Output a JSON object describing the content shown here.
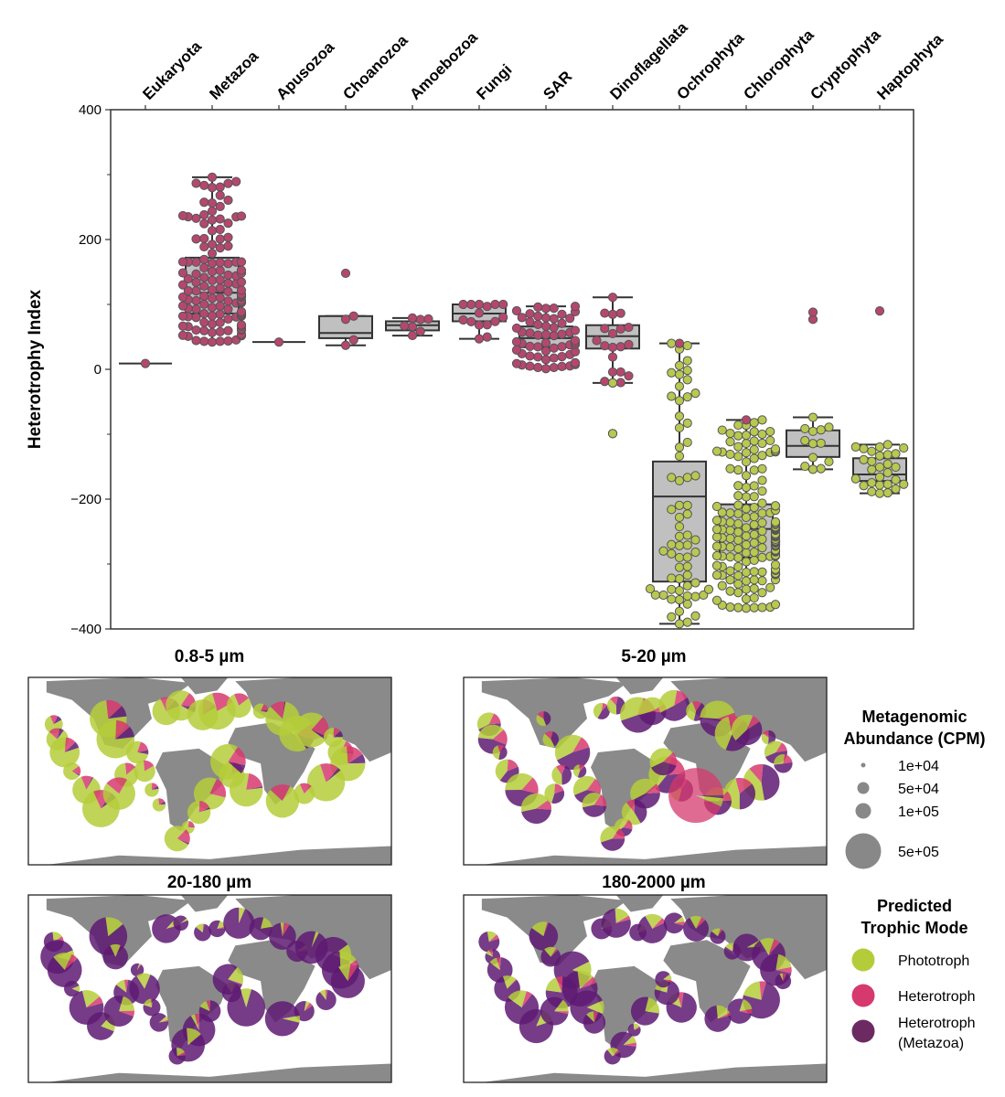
{
  "chart_data": [
    {
      "type": "box",
      "subtype": "box-with-swarm",
      "title": "",
      "xlabel": "",
      "ylabel": "Heterotrophy Index",
      "ylim": [
        -400,
        400
      ],
      "yticks": [
        400,
        200,
        0,
        -200,
        -400
      ],
      "ytick_labels": [
        "400",
        "200",
        "0",
        "−200",
        "−400"
      ],
      "yminor_ticks": [
        300,
        100,
        -100,
        -300
      ],
      "x_axis_position": "top",
      "grid": false,
      "categories": [
        "Eukaryota",
        "Metazoa",
        "Apusozoa",
        "Choanozoa",
        "Amoebozoa",
        "Fungi",
        "SAR",
        "Dinoflagellata",
        "Ochrophyta",
        "Chlorophyta",
        "Cryptophyta",
        "Haptophyta"
      ],
      "point_colors": {
        "heterotroph": "#b5476e",
        "phototroph": "#b9c850"
      },
      "box_fill": "#c0c0c0",
      "boxes": [
        {
          "category": "Eukaryota",
          "whisker_low": 9,
          "q1": 9,
          "median": 9,
          "q3": 9,
          "whisker_high": 9,
          "n_points": 1,
          "point_type": "heterotroph",
          "outliers": []
        },
        {
          "category": "Metazoa",
          "whisker_low": 42,
          "q1": 86,
          "median": 118,
          "q3": 172,
          "whisker_high": 296,
          "n_points": 130,
          "point_type": "heterotroph",
          "outliers": []
        },
        {
          "category": "Apusozoa",
          "whisker_low": 42,
          "q1": 42,
          "median": 42,
          "q3": 42,
          "whisker_high": 42,
          "n_points": 1,
          "point_type": "heterotroph",
          "outliers": []
        },
        {
          "category": "Choanozoa",
          "whisker_low": 37,
          "q1": 48,
          "median": 56,
          "q3": 82,
          "whisker_high": 82,
          "n_points": 4,
          "point_type": "heterotroph",
          "outliers": [
            148
          ]
        },
        {
          "category": "Amoebozoa",
          "whisker_low": 52,
          "q1": 60,
          "median": 68,
          "q3": 74,
          "whisker_high": 79,
          "n_points": 7,
          "point_type": "heterotroph",
          "outliers": []
        },
        {
          "category": "Fungi",
          "whisker_low": 47,
          "q1": 74,
          "median": 86,
          "q3": 100,
          "whisker_high": 100,
          "n_points": 15,
          "point_type": "heterotroph",
          "outliers": []
        },
        {
          "category": "SAR",
          "whisker_low": 1,
          "q1": 34,
          "median": 48,
          "q3": 66,
          "whisker_high": 97,
          "n_points": 60,
          "point_type": "heterotroph",
          "outliers": []
        },
        {
          "category": "Dinoflagellata",
          "whisker_low": -21,
          "q1": 32,
          "median": 51,
          "q3": 68,
          "whisker_high": 111,
          "n_points": 20,
          "point_type": "heterotroph",
          "outliers": [
            -99
          ]
        },
        {
          "category": "Ochrophyta",
          "whisker_low": -392,
          "q1": -327,
          "median": -196,
          "q3": -142,
          "whisker_high": 40,
          "n_points": 65,
          "point_type": "phototroph",
          "outliers": []
        },
        {
          "category": "Chlorophyta",
          "whisker_low": -368,
          "q1": -290,
          "median": -246,
          "q3": -208,
          "whisker_high": -78,
          "n_points": 180,
          "point_type": "phototroph",
          "outliers": []
        },
        {
          "category": "Cryptophyta",
          "whisker_low": -154,
          "q1": -135,
          "median": -118,
          "q3": -94,
          "whisker_high": -74,
          "n_points": 13,
          "point_type": "phototroph",
          "outliers": [
            77,
            88
          ]
        },
        {
          "category": "Haptophyta",
          "whisker_low": -191,
          "q1": -172,
          "median": -162,
          "q3": -137,
          "whisker_high": -116,
          "n_points": 28,
          "point_type": "phototroph",
          "outliers": [
            90
          ]
        }
      ],
      "highlighted_points": [
        {
          "category": "Dinoflagellata",
          "value": -21,
          "type": "phototroph"
        },
        {
          "category": "Dinoflagellata",
          "value": -99,
          "type": "phototroph"
        },
        {
          "category": "Ochrophyta",
          "value": 40,
          "type": "heterotroph"
        },
        {
          "category": "Chlorophyta",
          "value": -78,
          "type": "heterotroph"
        },
        {
          "category": "Cryptophyta",
          "value": 77,
          "type": "heterotroph"
        },
        {
          "category": "Cryptophyta",
          "value": 88,
          "type": "heterotroph"
        },
        {
          "category": "Haptophyta",
          "value": 90,
          "type": "heterotroph"
        }
      ]
    },
    {
      "type": "map-pie",
      "panels": [
        {
          "title": "0.8-5 µm",
          "dominant_mode": "Phototroph",
          "composition": {
            "Phototroph": 0.8,
            "Heterotroph": 0.17,
            "Heterotroph (Metazoa)": 0.03
          }
        },
        {
          "title": "5-20 µm",
          "dominant_mode": "Heterotroph (Metazoa)",
          "composition": {
            "Phototroph": 0.4,
            "Heterotroph": 0.15,
            "Heterotroph (Metazoa)": 0.45
          }
        },
        {
          "title": "20-180 µm",
          "dominant_mode": "Heterotroph (Metazoa)",
          "composition": {
            "Phototroph": 0.12,
            "Heterotroph": 0.03,
            "Heterotroph (Metazoa)": 0.85
          }
        },
        {
          "title": "180-2000 µm",
          "dominant_mode": "Heterotroph (Metazoa)",
          "composition": {
            "Phototroph": 0.15,
            "Heterotroph": 0.03,
            "Heterotroph (Metazoa)": 0.82
          }
        }
      ],
      "size_legend": {
        "title": [
          "Metagenomic",
          "Abundance (CPM)"
        ],
        "entries": [
          {
            "label": "1e+04",
            "value": 10000
          },
          {
            "label": "5e+04",
            "value": 50000
          },
          {
            "label": "1e+05",
            "value": 100000
          },
          {
            "label": "5e+05",
            "value": 500000
          }
        ],
        "color": "#888888"
      },
      "color_legend": {
        "title": [
          "Predicted",
          "Trophic Mode"
        ],
        "entries": [
          {
            "label": [
              "Phototroph"
            ],
            "color": "#b5cc3a"
          },
          {
            "label": [
              "Heterotroph"
            ],
            "color": "#d6396e"
          },
          {
            "label": [
              "Heterotroph",
              "(Metazoa)"
            ],
            "color": "#6b2b62"
          }
        ]
      },
      "map_colors": {
        "land": "#8a8a8a",
        "ocean": "#ffffff",
        "metazoa_pie": "#5e1a72"
      }
    }
  ]
}
